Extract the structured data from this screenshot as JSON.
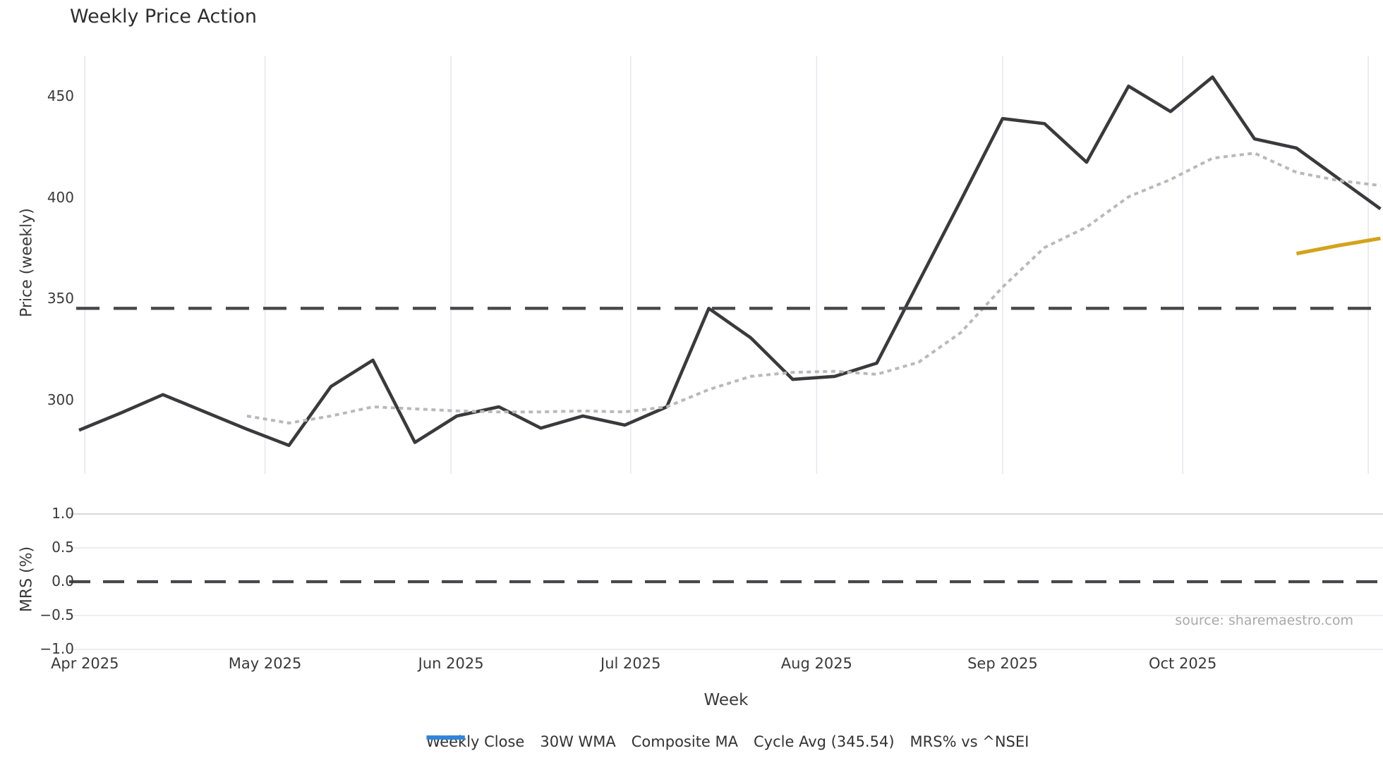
{
  "title": "Weekly Price Action",
  "source": "source: sharemaestro.com",
  "price_axis": {
    "label": "Price (weekly)",
    "ticks": [
      {
        "v": 450,
        "label": "450"
      },
      {
        "v": 400,
        "label": "400"
      },
      {
        "v": 350,
        "label": "350"
      },
      {
        "v": 300,
        "label": "300"
      }
    ]
  },
  "mrs_axis": {
    "label": "MRS (%)",
    "ticks": [
      {
        "v": 1.0,
        "label": "1.0"
      },
      {
        "v": 0.5,
        "label": "0.5"
      },
      {
        "v": 0.0,
        "label": "0.0"
      },
      {
        "v": -0.5,
        "label": "−0.5"
      },
      {
        "v": -1.0,
        "label": "−1.0"
      }
    ]
  },
  "x_axis": {
    "label": "Week"
  },
  "legend": [
    {
      "label": "Weekly Close",
      "color": "#3a3a3c",
      "style": "solid"
    },
    {
      "label": "30W WMA",
      "color": "#d4a31c",
      "style": "solid"
    },
    {
      "label": "Composite MA",
      "color": "#b9b9b9",
      "style": "dotted"
    },
    {
      "label": "Cycle Avg (345.54)",
      "color": "#48484a",
      "style": "dashed"
    },
    {
      "label": "MRS% vs ^NSEI",
      "color": "#2b87e3",
      "style": "solid"
    }
  ],
  "colors": {
    "grid": "#e7e7ef",
    "grid_strong": "#cfcfd6",
    "weekly_close": "#3a3a3c",
    "wma30": "#d4a31c",
    "composite": "#b9b9b9",
    "cycle": "#48484a",
    "mrs": "#2b87e3"
  },
  "chart_data": {
    "type": "line",
    "title": "Weekly Price Action",
    "xlabel": "Week",
    "ylabel_top": "Price (weekly)",
    "ylabel_bottom": "MRS (%)",
    "x_unit": "week index (weekly points, Apr 2025 – early Nov 2025)",
    "xlim_weeks": [
      0.765,
      32.06
    ],
    "month_ticks": [
      {
        "label": "Apr 2025",
        "week": 1.14
      },
      {
        "label": "May 2025",
        "week": 5.43
      },
      {
        "label": "Jun 2025",
        "week": 9.86
      },
      {
        "label": "Jul 2025",
        "week": 14.14
      },
      {
        "label": "Aug 2025",
        "week": 18.57
      },
      {
        "label": "Sep 2025",
        "week": 23.0
      },
      {
        "label": "Oct 2025",
        "week": 27.29
      },
      {
        "label": "",
        "week": 31.71
      }
    ],
    "price_panel": {
      "ylim": [
        264,
        470
      ],
      "yticks": [
        300,
        350,
        400,
        450
      ],
      "grid": "vertical-only"
    },
    "mrs_panel": {
      "ylim": [
        -1.073,
        1.156
      ],
      "yticks": [
        1.0,
        0.5,
        0.0,
        -0.5,
        -1.0
      ],
      "zero_line": "dashed",
      "grid": "horizontal-only"
    },
    "legend_position": "bottom-center",
    "series": [
      {
        "name": "Weekly Close",
        "panel": "price",
        "style": "solid",
        "color": "#3a3a3c",
        "width": 4.6,
        "values": [
          285.5,
          294,
          303,
          294.5,
          286,
          278,
          307,
          320,
          279.5,
          292.5,
          297,
          286.5,
          292.5,
          288,
          297,
          345.5,
          331,
          310.5,
          312,
          318.5,
          358.5,
          398.5,
          439,
          436.5,
          417.5,
          455,
          442.5,
          459.5,
          429,
          424.5,
          409.5,
          394.5
        ]
      },
      {
        "name": "30W WMA",
        "panel": "price",
        "style": "solid",
        "color": "#d4a31c",
        "width": 5.2,
        "values": [
          null,
          null,
          null,
          null,
          null,
          null,
          null,
          null,
          null,
          null,
          null,
          null,
          null,
          null,
          null,
          null,
          null,
          null,
          null,
          null,
          null,
          null,
          null,
          null,
          null,
          null,
          null,
          null,
          null,
          372.5,
          376.5,
          380
        ]
      },
      {
        "name": "Composite MA",
        "panel": "price",
        "style": "dotted",
        "color": "#b9b9b9",
        "width": 4,
        "values": [
          null,
          null,
          null,
          null,
          292.5,
          289,
          292.5,
          297,
          296,
          295,
          294.5,
          294.5,
          295,
          294.5,
          297,
          305.5,
          312,
          314,
          314.5,
          313,
          319,
          333.5,
          356,
          375.5,
          385.5,
          400.5,
          409,
          419.5,
          422,
          412.5,
          408.5,
          406
        ]
      },
      {
        "name": "Cycle Avg",
        "panel": "price",
        "style": "dashed",
        "color": "#48484a",
        "width": 4.4,
        "constant": 345.54
      },
      {
        "name": "MRS% vs ^NSEI",
        "panel": "mrs",
        "style": "solid",
        "color": "#2b87e3",
        "width": 4,
        "values": [],
        "values_visible": false
      }
    ]
  }
}
